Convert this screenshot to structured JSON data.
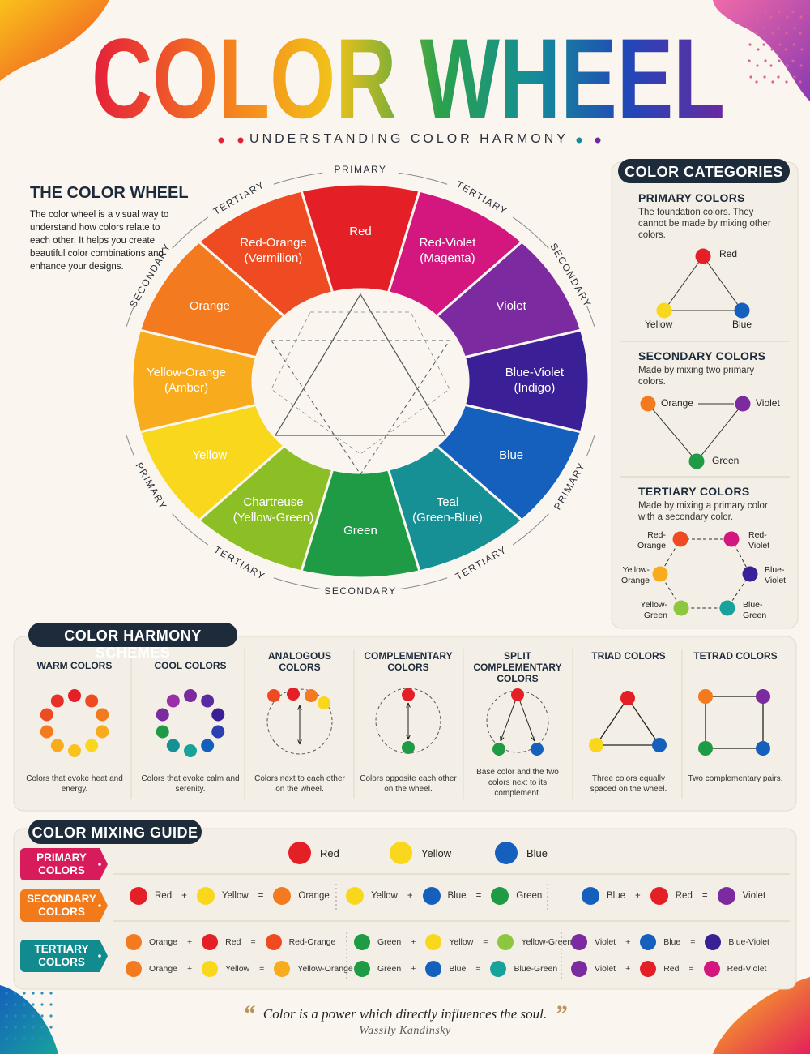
{
  "header": {
    "title": "COLOR WHEEL",
    "subtitle": "UNDERSTANDING COLOR HARMONY"
  },
  "palette": {
    "Red": "#e41f26",
    "Red-Orange": "#ef4b23",
    "Orange": "#f47a1f",
    "Yellow-Orange": "#f8ab1d",
    "Yellow": "#f9d71c",
    "Yellow-Green": "#8dc63f",
    "Chartreuse": "#8cbf26",
    "Green": "#1f9b45",
    "Blue-Green": "#17a39b",
    "Teal": "#168f95",
    "Blue": "#1560bd",
    "Blue-Violet": "#3b1f96",
    "Violet": "#7b2a9f",
    "Red-Violet": "#d3177f"
  },
  "intro": {
    "title": "THE COLOR WHEEL",
    "text": "The color wheel is a visual way to understand how colors relate to each other. It helps you create beautiful color combinations and enhance your designs."
  },
  "wheel": {
    "segments": [
      {
        "name": "Red",
        "ring": "PRIMARY"
      },
      {
        "name": "Red-Violet",
        "alt": "(Magenta)",
        "ring": "TERTIARY"
      },
      {
        "name": "Violet",
        "ring": "SECONDARY"
      },
      {
        "name": "Blue-Violet",
        "alt": "(Indigo)"
      },
      {
        "name": "Blue",
        "ring": "PRIMARY"
      },
      {
        "name": "Teal",
        "alt": "(Green-Blue)",
        "ring": "TERTIARY"
      },
      {
        "name": "Green",
        "ring": "SECONDARY"
      },
      {
        "name": "Chartreuse",
        "alt": "(Yellow-Green)",
        "ring": "TERTIARY"
      },
      {
        "name": "Yellow",
        "ring": "PRIMARY"
      },
      {
        "name": "Yellow-Orange",
        "alt": "(Amber)"
      },
      {
        "name": "Orange",
        "ring": "SECONDARY"
      },
      {
        "name": "Red-Orange",
        "alt": "(Vermilion)",
        "ring": "TERTIARY"
      }
    ]
  },
  "categories": {
    "title": "COLOR CATEGORIES",
    "groups": [
      {
        "title": "PRIMARY COLORS",
        "text": "The foundation colors. They cannot be made by mixing other colors.",
        "nodes": [
          "Red",
          "Yellow",
          "Blue"
        ]
      },
      {
        "title": "SECONDARY COLORS",
        "text": "Made by mixing two primary colors.",
        "nodes": [
          "Orange",
          "Violet",
          "Green"
        ]
      },
      {
        "title": "TERTIARY COLORS",
        "text": "Made by mixing a primary color with a secondary color.",
        "nodes": [
          "Red-Orange",
          "Red-Violet",
          "Yellow-Orange",
          "Blue-Violet",
          "Yellow-Green",
          "Blue-Green"
        ]
      }
    ]
  },
  "harmony": {
    "title": "COLOR HARMONY SCHEMES",
    "schemes": [
      {
        "title": "WARM COLORS",
        "caption": "Colors that evoke heat and energy.",
        "colors": [
          "#e41f26",
          "#ef4b23",
          "#f47a1f",
          "#f8ab1d",
          "#f9d71c",
          "#f9c21c",
          "#f8ab1d",
          "#f47a1f",
          "#ef4b23",
          "#e8302a"
        ]
      },
      {
        "title": "COOL COLORS",
        "caption": "Colors that evoke calm and serenity.",
        "colors": [
          "#7b2a9f",
          "#5a2aa0",
          "#3b1f96",
          "#2a3fb0",
          "#1560bd",
          "#17a39b",
          "#168f95",
          "#1f9b45",
          "#7b2a9f",
          "#9a2fa8"
        ]
      },
      {
        "title": "ANALOGOUS COLORS",
        "caption": "Colors next to each other on the wheel.",
        "colors": [
          "#ef4b23",
          "#e41f26",
          "#f47a1f",
          "#f9d71c"
        ]
      },
      {
        "title": "COMPLEMENTARY COLORS",
        "caption": "Colors opposite each other on the wheel.",
        "colors": [
          "#e41f26",
          "#1f9b45"
        ]
      },
      {
        "title": "SPLIT COMPLEMENTARY COLORS",
        "caption": "Base color and the two colors next to its complement.",
        "colors": [
          "#e41f26",
          "#1f9b45",
          "#1560bd"
        ]
      },
      {
        "title": "TRIAD COLORS",
        "caption": "Three colors equally spaced on the wheel.",
        "colors": [
          "#e41f26",
          "#f9d71c",
          "#1560bd"
        ]
      },
      {
        "title": "TETRAD COLORS",
        "caption": "Two complementary pairs.",
        "colors": [
          "#f47a1f",
          "#7b2a9f",
          "#1f9b45",
          "#1560bd"
        ]
      }
    ]
  },
  "mixing": {
    "title": "COLOR MIXING GUIDE",
    "plus": "+",
    "equals": "=",
    "rows": [
      {
        "label": "PRIMARY COLORS",
        "color": "#d81b5a",
        "items": [
          "Red",
          "Yellow",
          "Blue"
        ]
      },
      {
        "label": "SECONDARY COLORS",
        "color": "#f27a1a",
        "equations": [
          [
            "Red",
            "Yellow",
            "Orange"
          ],
          [
            "Yellow",
            "Blue",
            "Green"
          ],
          [
            "Blue",
            "Red",
            "Violet"
          ]
        ]
      },
      {
        "label": "TERTIARY COLORS",
        "color": "#128b8f",
        "equations": [
          [
            "Orange",
            "Red",
            "Red-Orange"
          ],
          [
            "Green",
            "Yellow",
            "Yellow-Green"
          ],
          [
            "Violet",
            "Blue",
            "Blue-Violet"
          ],
          [
            "Orange",
            "Yellow",
            "Yellow-Orange"
          ],
          [
            "Green",
            "Blue",
            "Blue-Green"
          ],
          [
            "Violet",
            "Red",
            "Red-Violet"
          ]
        ]
      }
    ]
  },
  "quote": {
    "open": "“",
    "text": "Color is a power which directly influences the soul.",
    "close": "”",
    "author": "Wassily Kandinsky"
  }
}
